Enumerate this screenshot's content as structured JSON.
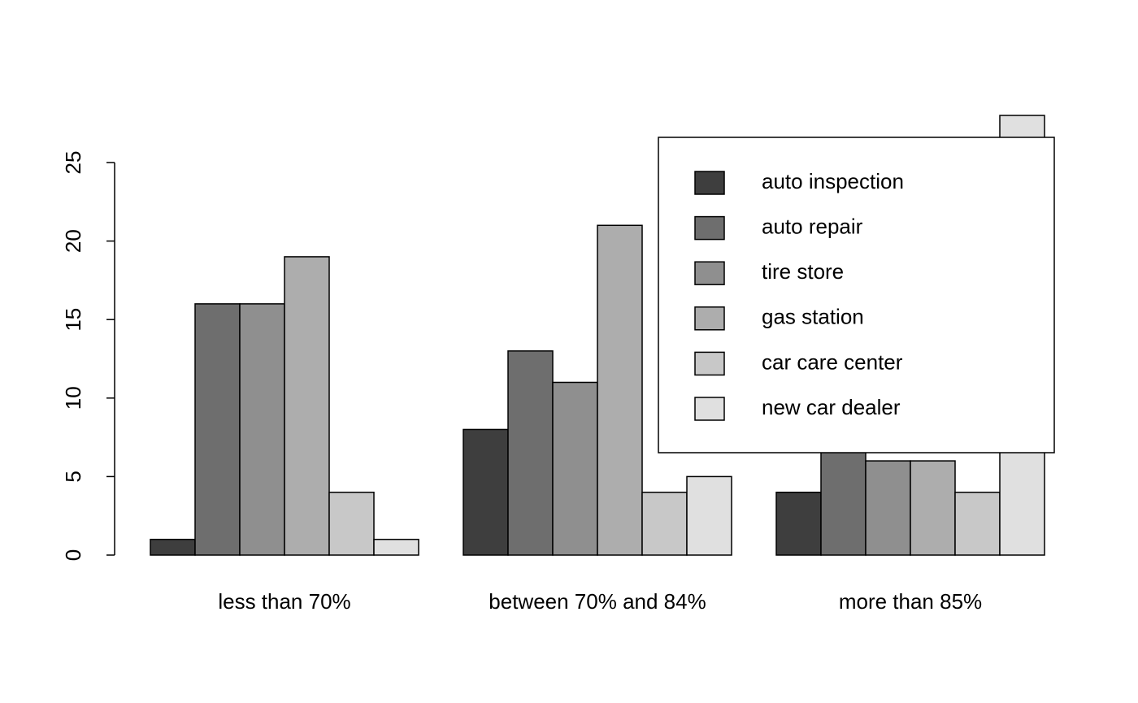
{
  "chart_data": {
    "type": "bar",
    "categories": [
      "less than 70%",
      "between 70% and 84%",
      "more than 85%"
    ],
    "series": [
      {
        "name": "auto inspection",
        "color": "#3e3e3e",
        "values": [
          1,
          8,
          4
        ]
      },
      {
        "name": "auto repair",
        "color": "#6e6e6e",
        "values": [
          16,
          13,
          7
        ]
      },
      {
        "name": "tire store",
        "color": "#8f8f8f",
        "values": [
          16,
          11,
          6
        ]
      },
      {
        "name": "gas station",
        "color": "#adadad",
        "values": [
          19,
          21,
          6
        ]
      },
      {
        "name": "car care center",
        "color": "#c8c8c8",
        "values": [
          4,
          4,
          4
        ]
      },
      {
        "name": "new car dealer",
        "color": "#e0e0e0",
        "values": [
          1,
          5,
          28
        ]
      }
    ],
    "ylim": [
      0,
      30
    ],
    "yticks": [
      0,
      5,
      10,
      15,
      20,
      25
    ],
    "legend": "topright",
    "grid": false
  }
}
